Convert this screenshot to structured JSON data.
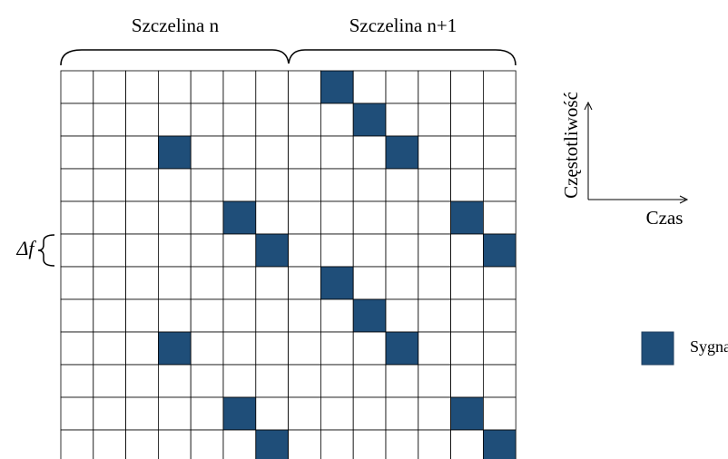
{
  "header": {
    "slot_1": "Szczelina n",
    "slot_2": "Szczelina n+1"
  },
  "axes": {
    "vertical": "Częstotliwość",
    "horizontal": "Czas"
  },
  "spacing_label": "Δf",
  "legend": {
    "label": "Sygnały PRS"
  }
}
